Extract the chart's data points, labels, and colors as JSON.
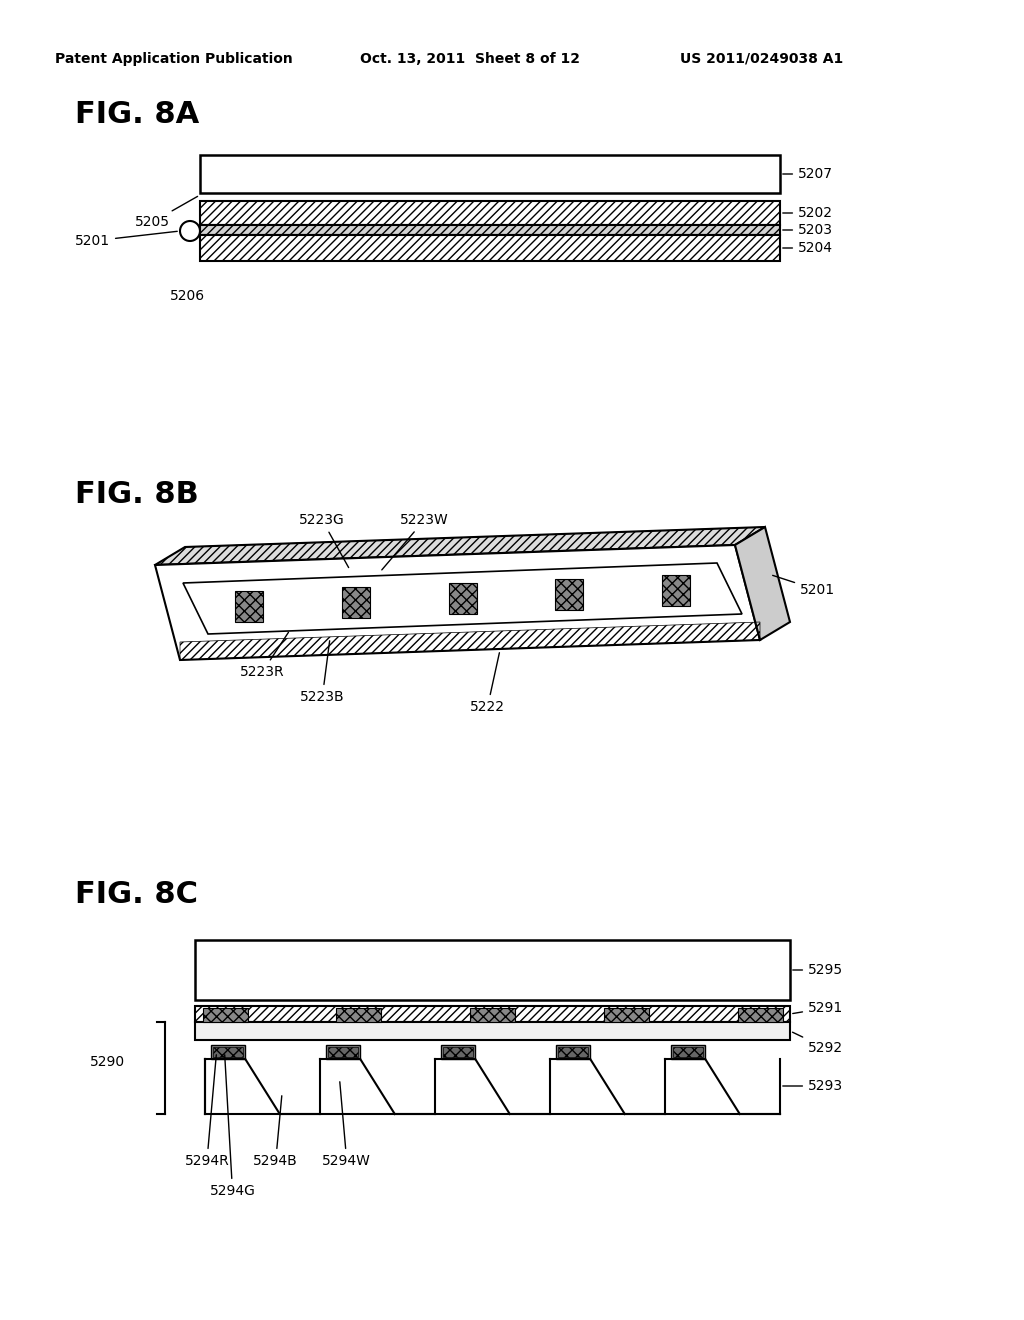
{
  "bg_color": "#ffffff",
  "header_left": "Patent Application Publication",
  "header_center": "Oct. 13, 2011  Sheet 8 of 12",
  "header_right": "US 2011/0249038 A1",
  "fig8a_label": "FIG. 8A",
  "fig8b_label": "FIG. 8B",
  "fig8c_label": "FIG. 8C"
}
